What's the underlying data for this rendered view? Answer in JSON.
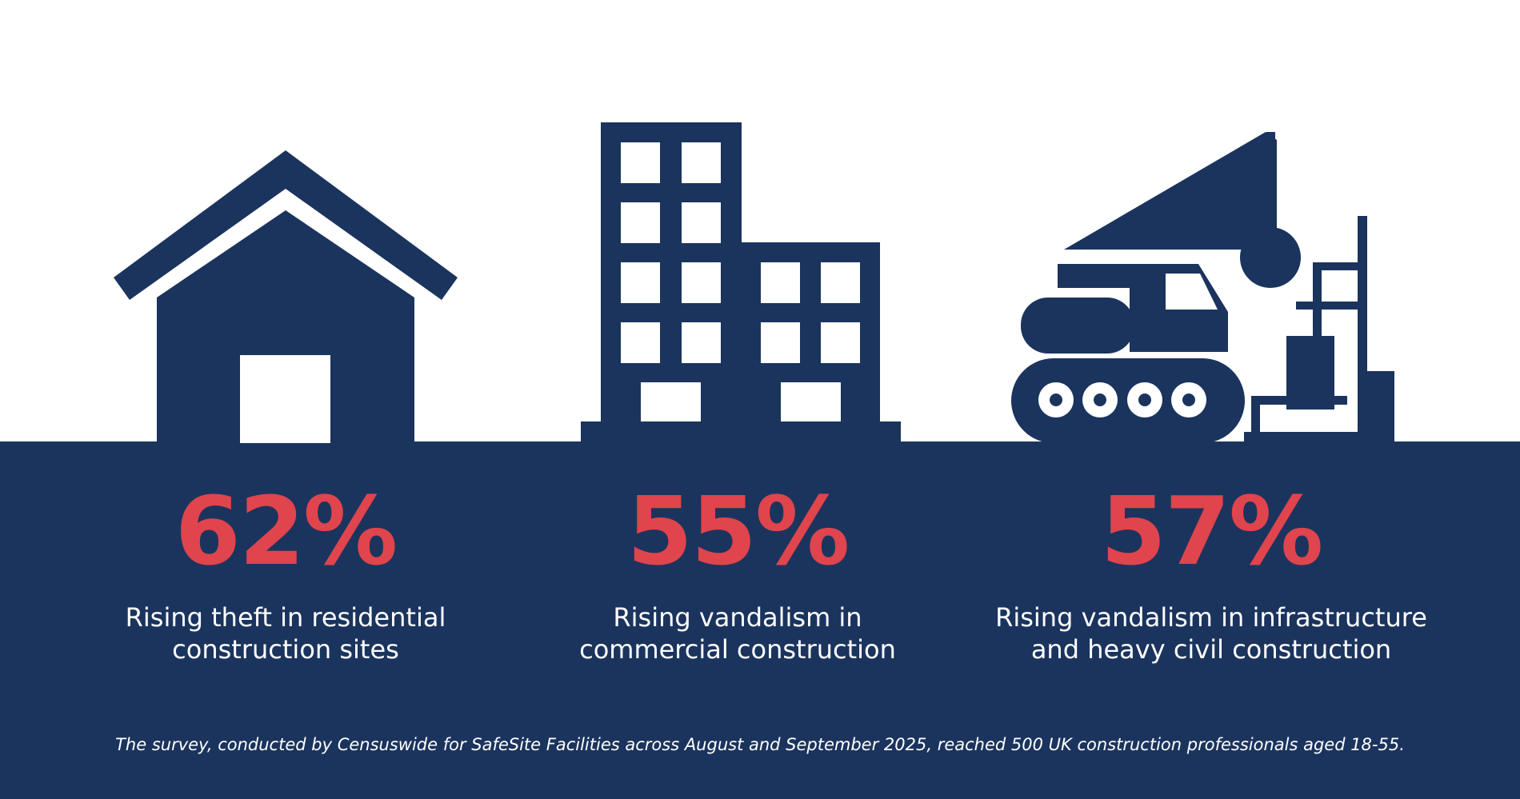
{
  "colors": {
    "navy": "#1b345e",
    "accent": "#e0444c",
    "background": "#ffffff",
    "text": "#ffffff"
  },
  "stats": [
    {
      "icon": "house-icon",
      "percent": "62%",
      "description": "Rising theft in residential\nconstruction sites"
    },
    {
      "icon": "office-building-icon",
      "percent": "55%",
      "description": "Rising vandalism in\ncommercial construction"
    },
    {
      "icon": "crane-excavator-icon",
      "percent": "57%",
      "description": "Rising vandalism in infrastructure\nand heavy civil construction"
    }
  ],
  "footnote": "The survey, conducted by Censuswide for SafeSite Facilities across August and September 2025, reached 500 UK construction professionals aged 18-55."
}
